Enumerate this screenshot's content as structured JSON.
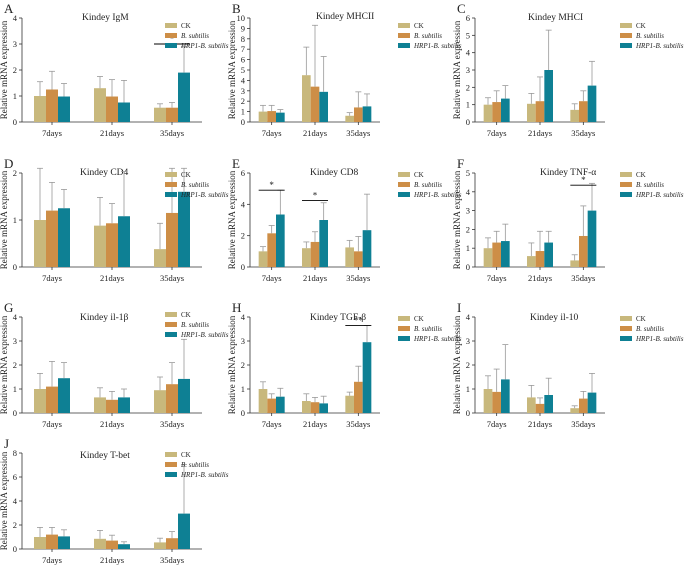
{
  "figure": {
    "colors": {
      "CK": "#c8b87c",
      "B. subtilis": "#cd8e47",
      "HRP1-B. subtilis": "#0e8094",
      "axis": "#333333",
      "errorbar": "#999999"
    },
    "chart_data": [
      {
        "panel": "A",
        "type": "bar",
        "title": "Kindey IgM",
        "ylabel": "Relative mRNA expression",
        "ylim": [
          0,
          4
        ],
        "yticks": [
          0,
          1,
          2,
          3,
          4
        ],
        "categories": [
          "7days",
          "21days",
          "35days"
        ],
        "series": [
          {
            "name": "CK",
            "values": [
              1.0,
              1.3,
              0.55
            ],
            "errors": [
              0.55,
              0.45,
              0.15
            ]
          },
          {
            "name": "B. subtilis",
            "values": [
              1.25,
              0.98,
              0.55
            ],
            "errors": [
              0.7,
              0.65,
              0.2
            ]
          },
          {
            "name": "HRP1-B. subtilis",
            "values": [
              0.98,
              0.75,
              1.9
            ],
            "errors": [
              0.5,
              0.85,
              1.0
            ]
          }
        ],
        "annotations": [
          {
            "label": "*",
            "from": [
              2,
              0
            ],
            "to": [
              2,
              2
            ],
            "y": 3.0
          }
        ]
      },
      {
        "panel": "B",
        "type": "bar",
        "title": "Kindey MHCII",
        "ylabel": "Relative mRNA expression",
        "ylim": [
          0,
          10
        ],
        "yticks": [
          0,
          1,
          2,
          3,
          4,
          5,
          6,
          7,
          8,
          9,
          10
        ],
        "categories": [
          "7days",
          "21days",
          "35days"
        ],
        "series": [
          {
            "name": "CK",
            "values": [
              1.0,
              4.5,
              0.6
            ],
            "errors": [
              0.6,
              2.7,
              0.3
            ]
          },
          {
            "name": "B. subtilis",
            "values": [
              1.05,
              3.4,
              1.4
            ],
            "errors": [
              0.55,
              5.9,
              1.5
            ]
          },
          {
            "name": "HRP1-B. subtilis",
            "values": [
              0.9,
              2.9,
              1.5
            ],
            "errors": [
              0.3,
              3.4,
              1.2
            ]
          }
        ],
        "annotations": []
      },
      {
        "panel": "C",
        "type": "bar",
        "title": "Kindey MHCI",
        "ylabel": "Relative mRNA expression",
        "ylim": [
          0,
          6
        ],
        "yticks": [
          0,
          1,
          2,
          3,
          4,
          5,
          6
        ],
        "categories": [
          "7days",
          "21days",
          "35days"
        ],
        "series": [
          {
            "name": "CK",
            "values": [
              1.0,
              1.05,
              0.7
            ],
            "errors": [
              0.4,
              0.6,
              0.35
            ]
          },
          {
            "name": "B. subtilis",
            "values": [
              1.15,
              1.2,
              1.2
            ],
            "errors": [
              0.65,
              1.4,
              0.6
            ]
          },
          {
            "name": "HRP1-B. subtilis",
            "values": [
              1.35,
              3.0,
              2.1
            ],
            "errors": [
              0.75,
              2.3,
              1.4
            ]
          }
        ],
        "annotations": []
      },
      {
        "panel": "D",
        "type": "bar",
        "title": "Kindey CD4",
        "ylabel": "Relative mRNA expression",
        "ylim": [
          0,
          2
        ],
        "yticks": [
          0,
          1,
          2
        ],
        "categories": [
          "7days",
          "21days",
          "35days"
        ],
        "series": [
          {
            "name": "CK",
            "values": [
              1.0,
              0.88,
              0.38
            ],
            "errors": [
              1.35,
              0.6,
              0.55
            ]
          },
          {
            "name": "B. subtilis",
            "values": [
              1.2,
              0.93,
              1.15
            ],
            "errors": [
              0.6,
              0.42,
              1.25
            ]
          },
          {
            "name": "HRP1-B. subtilis",
            "values": [
              1.25,
              1.08,
              1.6
            ],
            "errors": [
              0.4,
              0.95,
              0.9
            ]
          }
        ],
        "annotations": []
      },
      {
        "panel": "E",
        "type": "bar",
        "title": "Kindey CD8",
        "ylabel": "Relative mRNA expression",
        "ylim": [
          0,
          6
        ],
        "yticks": [
          0,
          2,
          4,
          6
        ],
        "categories": [
          "7days",
          "21days",
          "35days"
        ],
        "series": [
          {
            "name": "CK",
            "values": [
              1.0,
              1.2,
              1.25
            ],
            "errors": [
              0.3,
              0.4,
              0.45
            ]
          },
          {
            "name": "B. subtilis",
            "values": [
              2.15,
              1.6,
              1.0
            ],
            "errors": [
              0.5,
              0.65,
              0.95
            ]
          },
          {
            "name": "HRP1-B. subtilis",
            "values": [
              3.35,
              3.0,
              2.35
            ],
            "errors": [
              1.55,
              1.1,
              2.3
            ]
          }
        ],
        "annotations": [
          {
            "label": "*",
            "from": [
              0,
              0
            ],
            "to": [
              0,
              2
            ],
            "y": 4.9
          },
          {
            "label": "*",
            "from": [
              1,
              0
            ],
            "to": [
              1,
              2
            ],
            "y": 4.25
          }
        ]
      },
      {
        "panel": "F",
        "type": "bar",
        "title": "Kindey TNF-α",
        "ylabel": "Relative mRNA expression",
        "ylim": [
          0,
          5
        ],
        "yticks": [
          0,
          1,
          2,
          3,
          4,
          5
        ],
        "categories": [
          "7days",
          "21days",
          "35days"
        ],
        "series": [
          {
            "name": "CK",
            "values": [
              1.0,
              0.58,
              0.35
            ],
            "errors": [
              0.55,
              0.7,
              0.3
            ]
          },
          {
            "name": "B. subtilis",
            "values": [
              1.3,
              0.85,
              1.65
            ],
            "errors": [
              0.6,
              1.05,
              1.6
            ]
          },
          {
            "name": "HRP1-B. subtilis",
            "values": [
              1.38,
              1.3,
              3.0
            ],
            "errors": [
              0.9,
              0.6,
              1.45
            ]
          }
        ],
        "annotations": [
          {
            "label": "*",
            "from": [
              2,
              0
            ],
            "to": [
              2,
              2
            ],
            "y": 4.35
          }
        ]
      },
      {
        "panel": "G",
        "type": "bar",
        "title": "Kindey il-1β",
        "ylabel": "Relative mRNA expression",
        "ylim": [
          0,
          4
        ],
        "yticks": [
          0,
          1,
          2,
          3,
          4
        ],
        "categories": [
          "7days",
          "21days",
          "35days"
        ],
        "series": [
          {
            "name": "CK",
            "values": [
              1.0,
              0.65,
              0.95
            ],
            "errors": [
              0.65,
              0.4,
              0.55
            ]
          },
          {
            "name": "B. subtilis",
            "values": [
              1.1,
              0.55,
              1.2
            ],
            "errors": [
              1.05,
              0.35,
              0.9
            ]
          },
          {
            "name": "HRP1-B. subtilis",
            "values": [
              1.45,
              0.65,
              1.42
            ],
            "errors": [
              0.65,
              0.35,
              1.65
            ]
          }
        ],
        "annotations": []
      },
      {
        "panel": "H",
        "type": "bar",
        "title": "Kindey TGF-β",
        "ylabel": "Relative mRNA expression",
        "ylim": [
          0,
          4
        ],
        "yticks": [
          0,
          1,
          2,
          3,
          4
        ],
        "categories": [
          "7days",
          "21days",
          "35days"
        ],
        "series": [
          {
            "name": "CK",
            "values": [
              1.0,
              0.5,
              0.72
            ],
            "errors": [
              0.3,
              0.3,
              0.15
            ]
          },
          {
            "name": "B. subtilis",
            "values": [
              0.6,
              0.45,
              1.3
            ],
            "errors": [
              0.2,
              0.2,
              0.65
            ]
          },
          {
            "name": "HRP1-B. subtilis",
            "values": [
              0.68,
              0.4,
              2.95
            ],
            "errors": [
              0.35,
              0.3,
              0.7
            ]
          }
        ],
        "annotations": [
          {
            "label": "**",
            "from": [
              2,
              0
            ],
            "to": [
              2,
              2
            ],
            "y": 3.65
          }
        ]
      },
      {
        "panel": "I",
        "type": "bar",
        "title": "Kindey il-10",
        "ylabel": "Relative mRNA expression",
        "ylim": [
          0,
          4
        ],
        "yticks": [
          0,
          1,
          2,
          3,
          4
        ],
        "categories": [
          "7days",
          "21days",
          "35days"
        ],
        "series": [
          {
            "name": "CK",
            "values": [
              1.0,
              0.65,
              0.2
            ],
            "errors": [
              0.55,
              0.5,
              0.1
            ]
          },
          {
            "name": "B. subtilis",
            "values": [
              0.88,
              0.38,
              0.6
            ],
            "errors": [
              0.95,
              0.25,
              0.3
            ]
          },
          {
            "name": "HRP1-B. subtilis",
            "values": [
              1.4,
              0.75,
              0.85
            ],
            "errors": [
              1.45,
              0.7,
              0.8
            ]
          }
        ],
        "annotations": []
      },
      {
        "panel": "J",
        "type": "bar",
        "title": "Kindey T-bet",
        "ylabel": "Relative mRNA expression",
        "ylim": [
          0,
          8
        ],
        "yticks": [
          0,
          2,
          4,
          6,
          8
        ],
        "categories": [
          "7days",
          "21days",
          "35days"
        ],
        "series": [
          {
            "name": "CK",
            "values": [
              1.0,
              0.85,
              0.55
            ],
            "errors": [
              0.8,
              0.7,
              0.35
            ]
          },
          {
            "name": "B. subtilis",
            "values": [
              1.2,
              0.7,
              0.9
            ],
            "errors": [
              0.6,
              0.45,
              0.55
            ]
          },
          {
            "name": "HRP1-B. subtilis",
            "values": [
              1.05,
              0.4,
              2.95
            ],
            "errors": [
              0.55,
              0.2,
              4.1
            ]
          }
        ],
        "annotations": []
      }
    ]
  }
}
